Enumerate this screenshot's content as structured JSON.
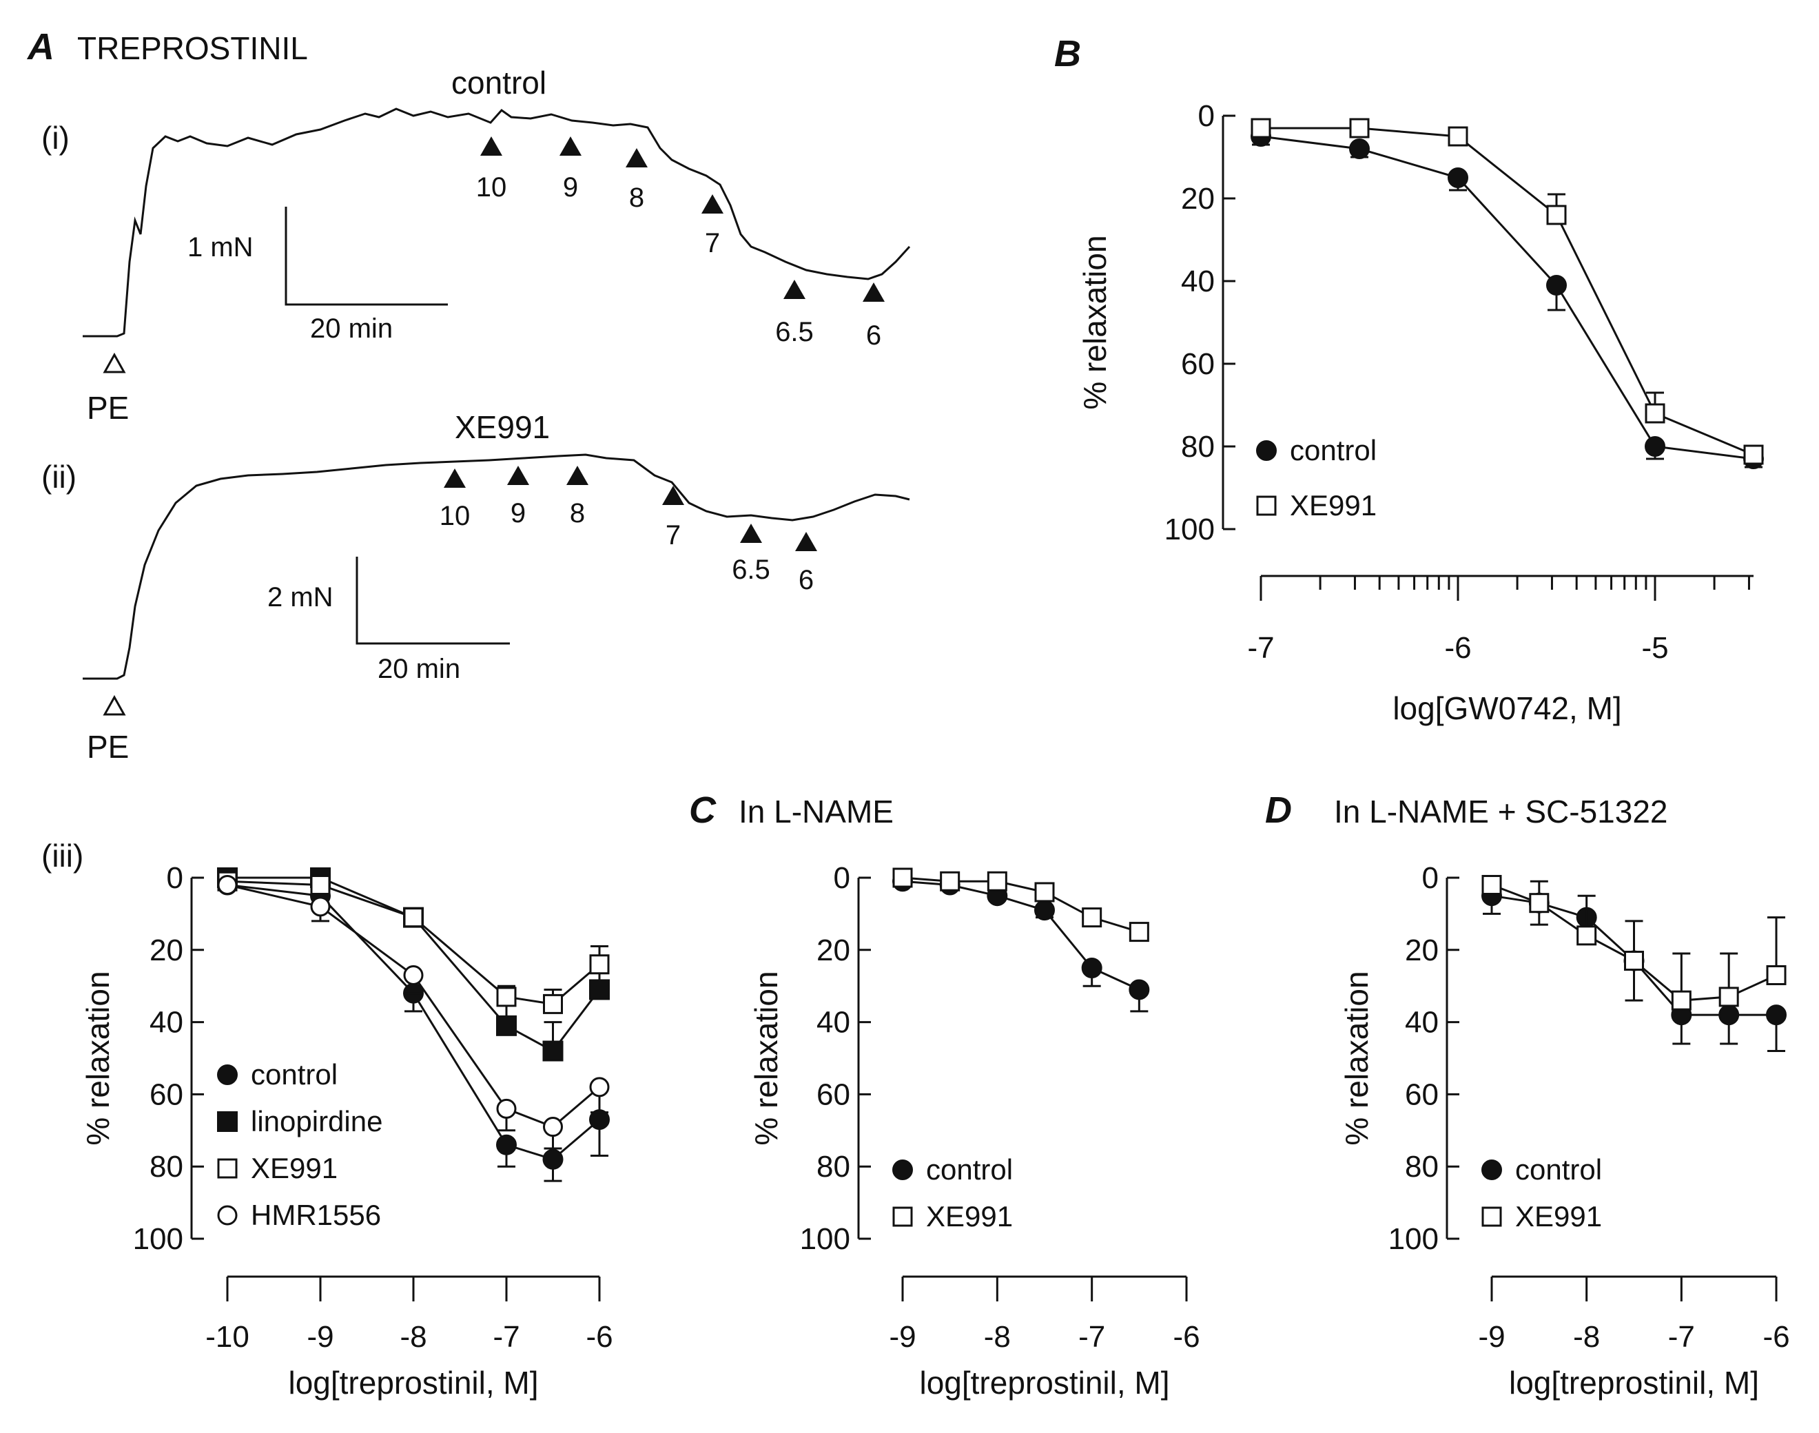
{
  "colors": {
    "ink": "#111111",
    "background": "#ffffff"
  },
  "panelA": {
    "label": "A",
    "title": "TREPROSTINIL",
    "trace_i": {
      "sub": "(i)",
      "condition": "control",
      "markers": [
        "10",
        "9",
        "8",
        "7",
        "6.5",
        "6"
      ],
      "start_label": "PE",
      "scale_force": "1 mN",
      "scale_time": "20 min"
    },
    "trace_ii": {
      "sub": "(ii)",
      "condition": "XE991",
      "markers": [
        "10",
        "9",
        "8",
        "7",
        "6.5",
        "6"
      ],
      "start_label": "PE",
      "scale_force": "2 mN",
      "scale_time": "20 min"
    },
    "sub_iii": "(iii)"
  },
  "panelB": {
    "label": "B"
  },
  "panelC": {
    "label": "C",
    "title": "In L-NAME"
  },
  "panelD": {
    "label": "D",
    "title": "In L-NAME + SC-51322"
  },
  "chart_data": [
    {
      "id": "B",
      "type": "line",
      "xlabel": "log[GW0742, M]",
      "ylabel": "% relaxation",
      "xlim": [
        -7,
        -4.5
      ],
      "ylim": [
        0,
        100
      ],
      "y_inverted": true,
      "xticks": [
        "-7",
        "-6",
        "-5"
      ],
      "yticks": [
        "0",
        "20",
        "40",
        "60",
        "80",
        "100"
      ],
      "log_minor_ticks": true,
      "legend": "bottom-left",
      "series": [
        {
          "name": "control",
          "marker": "filled-circle",
          "x": [
            -7,
            -6.5,
            -6,
            -5.5,
            -5,
            -4.5
          ],
          "y": [
            5,
            8,
            15,
            41,
            80,
            83
          ],
          "err": [
            2,
            2,
            3,
            6,
            3,
            2
          ]
        },
        {
          "name": "XE991",
          "marker": "open-square",
          "x": [
            -7,
            -6.5,
            -6,
            -5.5,
            -5,
            -4.5
          ],
          "y": [
            3,
            3,
            5,
            24,
            72,
            82
          ],
          "err": [
            1,
            1,
            2,
            5,
            5,
            2
          ]
        }
      ]
    },
    {
      "id": "Aiii",
      "type": "line",
      "xlabel": "log[treprostinil, M]",
      "ylabel": "% relaxation",
      "xlim": [
        -10,
        -6
      ],
      "ylim": [
        0,
        100
      ],
      "y_inverted": true,
      "xticks": [
        "-10",
        "-9",
        "-8",
        "-7",
        "-6"
      ],
      "yticks": [
        "0",
        "20",
        "40",
        "60",
        "80",
        "100"
      ],
      "legend": "bottom-left",
      "series": [
        {
          "name": "control",
          "marker": "filled-circle",
          "x": [
            -10,
            -9,
            -8,
            -7,
            -6.5,
            -6
          ],
          "y": [
            2,
            5,
            32,
            74,
            78,
            67
          ],
          "err": [
            1,
            4,
            5,
            6,
            6,
            10
          ]
        },
        {
          "name": "linopirdine",
          "marker": "filled-square",
          "x": [
            -10,
            -9,
            -8,
            -7,
            -6.5,
            -6
          ],
          "y": [
            0,
            0,
            11,
            41,
            48,
            31
          ],
          "err": [
            1,
            1,
            2,
            6,
            8,
            6
          ]
        },
        {
          "name": "XE991",
          "marker": "open-square",
          "x": [
            -10,
            -9,
            -8,
            -7,
            -6.5,
            -6
          ],
          "y": [
            1,
            2,
            11,
            33,
            35,
            24
          ],
          "err": [
            1,
            2,
            2,
            3,
            4,
            5
          ]
        },
        {
          "name": "HMR1556",
          "marker": "open-circle",
          "x": [
            -10,
            -9,
            -8,
            -7,
            -6.5,
            -6
          ],
          "y": [
            2,
            8,
            27,
            64,
            69,
            58
          ],
          "err": [
            1,
            4,
            5,
            6,
            6,
            7
          ]
        }
      ]
    },
    {
      "id": "C",
      "type": "line",
      "xlabel": "log[treprostinil, M]",
      "ylabel": "% relaxation",
      "xlim": [
        -9,
        -6
      ],
      "ylim": [
        0,
        100
      ],
      "y_inverted": true,
      "xticks": [
        "-9",
        "-8",
        "-7",
        "-6"
      ],
      "yticks": [
        "0",
        "20",
        "40",
        "60",
        "80",
        "100"
      ],
      "legend": "bottom-left",
      "series": [
        {
          "name": "control",
          "marker": "filled-circle",
          "x": [
            -9,
            -8.5,
            -8,
            -7.5,
            -7,
            -6.5
          ],
          "y": [
            1,
            2,
            5,
            9,
            25,
            31
          ],
          "err": [
            1,
            1,
            1,
            2,
            5,
            6
          ]
        },
        {
          "name": "XE991",
          "marker": "open-square",
          "x": [
            -9,
            -8.5,
            -8,
            -7.5,
            -7,
            -6.5
          ],
          "y": [
            0,
            1,
            1,
            4,
            11,
            15
          ],
          "err": [
            1,
            1,
            1,
            1,
            2,
            2
          ]
        }
      ]
    },
    {
      "id": "D",
      "type": "line",
      "xlabel": "log[treprostinil, M]",
      "ylabel": "% relaxation",
      "xlim": [
        -9,
        -6
      ],
      "ylim": [
        0,
        100
      ],
      "y_inverted": true,
      "xticks": [
        "-9",
        "-8",
        "-7",
        "-6"
      ],
      "yticks": [
        "0",
        "20",
        "40",
        "60",
        "80",
        "100"
      ],
      "legend": "bottom-left",
      "series": [
        {
          "name": "control",
          "marker": "filled-circle",
          "x": [
            -9,
            -8.5,
            -8,
            -7.5,
            -7,
            -6.5,
            -6
          ],
          "y": [
            5,
            7,
            11,
            23,
            38,
            38,
            38
          ],
          "err": [
            5,
            6,
            6,
            11,
            8,
            8,
            10
          ]
        },
        {
          "name": "XE991",
          "marker": "open-square",
          "x": [
            -9,
            -8.5,
            -8,
            -7.5,
            -7,
            -6.5,
            -6
          ],
          "y": [
            2,
            7,
            16,
            23,
            34,
            33,
            27
          ],
          "err": [
            2,
            6,
            11,
            11,
            13,
            12,
            16
          ]
        }
      ]
    }
  ]
}
